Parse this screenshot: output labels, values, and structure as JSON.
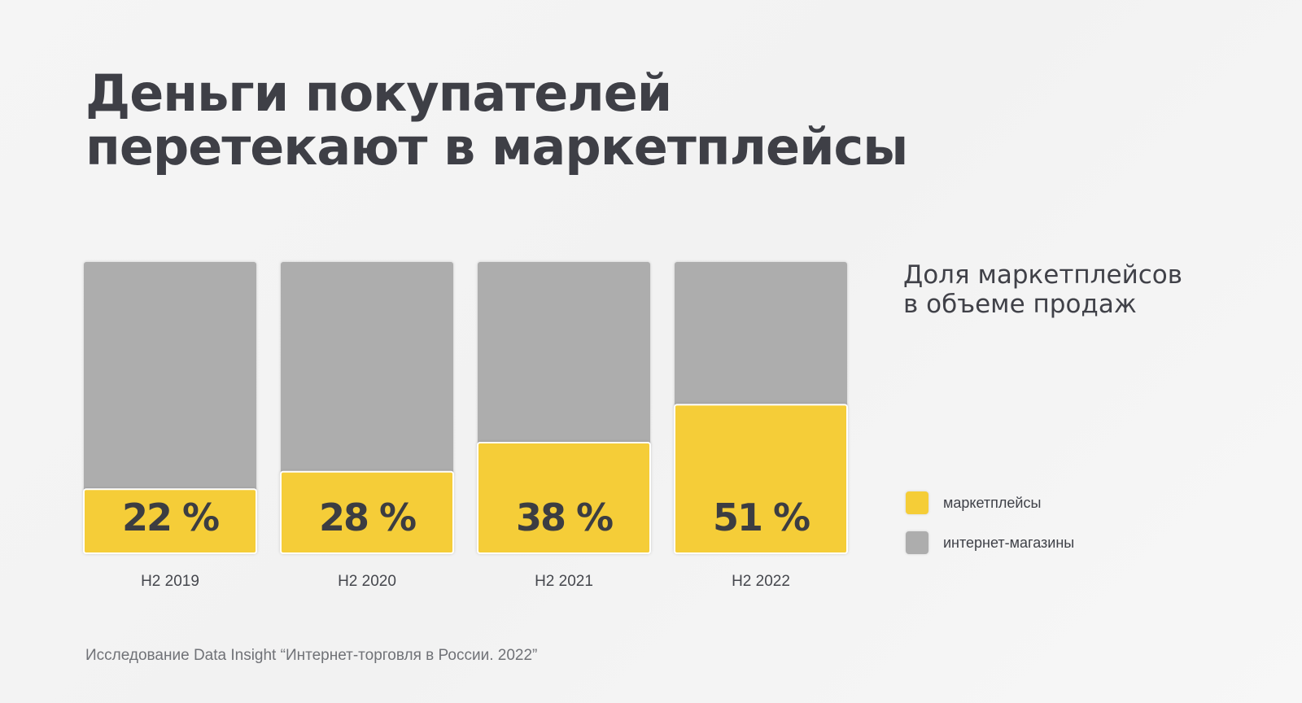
{
  "title": {
    "line1": "Деньги покупателей",
    "line2": "перетекают в маркетплейсы"
  },
  "legend": {
    "title_line1": "Доля маркетплейсов",
    "title_line2": "в объеме продаж",
    "items": [
      {
        "label": "маркетплейсы",
        "color": "#f5cd37"
      },
      {
        "label": "интернет-магазины",
        "color": "#adadad"
      }
    ]
  },
  "source": "Исследование Data Insight “Интернет-торговля в России. 2022”",
  "chart_data": {
    "type": "bar",
    "stacked": true,
    "categories": [
      "H2 2019",
      "H2 2020",
      "H2 2021",
      "H2 2022"
    ],
    "series": [
      {
        "name": "маркетплейсы",
        "values": [
          22,
          28,
          38,
          51
        ],
        "color": "#f5cd37"
      },
      {
        "name": "интернет-магазины",
        "values": [
          78,
          72,
          62,
          49
        ],
        "color": "#adadad"
      }
    ],
    "value_labels": [
      "22 %",
      "28 %",
      "38 %",
      "51 %"
    ],
    "ylim": [
      0,
      100
    ],
    "unit": "%"
  }
}
